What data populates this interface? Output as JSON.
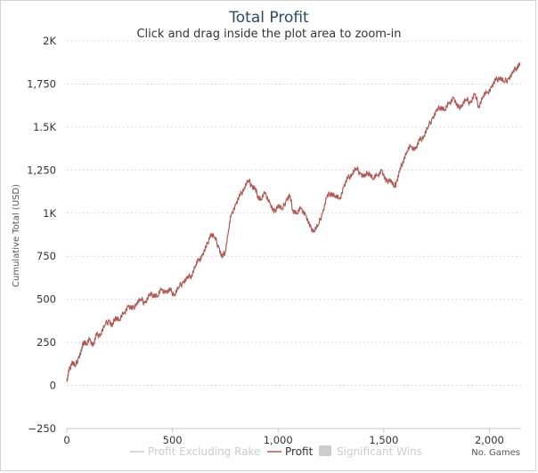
{
  "chart_data": {
    "type": "line",
    "title": "Total Profit",
    "subtitle": "Click and drag inside the plot area to zoom-in",
    "ylabel": "Cumulative Total (USD)",
    "xlabel": "No. Games",
    "xlim": [
      0,
      2150
    ],
    "ylim": [
      -250,
      2000
    ],
    "x_ticks": [
      0,
      500,
      1000,
      1500,
      2000
    ],
    "x_tick_labels": [
      "0",
      "500",
      "1,000",
      "1,500",
      "2,000"
    ],
    "y_ticks": [
      -250,
      0,
      250,
      500,
      750,
      1000,
      1250,
      1500,
      1750,
      2000
    ],
    "y_tick_labels": [
      "−250",
      "0",
      "250",
      "500",
      "750",
      "1K",
      "1,250",
      "1.5K",
      "1,750",
      "2K"
    ],
    "grid": "horizontal-dotted",
    "legend_position": "bottom-center",
    "legend": [
      {
        "name": "Profit Excluding Rake",
        "color": "#cccccc",
        "symbol": "line",
        "hidden": true
      },
      {
        "name": "Profit",
        "color": "#b05a55",
        "symbol": "line",
        "hidden": false
      },
      {
        "name": "Significant Wins",
        "color": "#cccccc",
        "symbol": "square",
        "hidden": true
      }
    ],
    "series": [
      {
        "name": "Profit",
        "color": "#b05a55",
        "x": [
          0,
          10,
          25,
          40,
          55,
          70,
          80,
          95,
          110,
          125,
          140,
          160,
          180,
          200,
          215,
          230,
          250,
          270,
          290,
          310,
          330,
          350,
          370,
          390,
          410,
          430,
          450,
          470,
          490,
          510,
          530,
          550,
          570,
          590,
          610,
          625,
          640,
          660,
          680,
          700,
          720,
          735,
          750,
          765,
          780,
          800,
          820,
          840,
          860,
          875,
          890,
          905,
          920,
          940,
          960,
          980,
          1000,
          1020,
          1040,
          1055,
          1070,
          1090,
          1110,
          1130,
          1150,
          1170,
          1190,
          1210,
          1230,
          1250,
          1270,
          1290,
          1310,
          1330,
          1350,
          1370,
          1390,
          1410,
          1430,
          1450,
          1470,
          1490,
          1510,
          1530,
          1550,
          1560,
          1575,
          1590,
          1610,
          1630,
          1650,
          1670,
          1690,
          1710,
          1730,
          1750,
          1770,
          1790,
          1810,
          1830,
          1850,
          1870,
          1890,
          1910,
          1930,
          1950,
          1970,
          1990,
          2010,
          2030,
          2050,
          2070,
          2090,
          2110,
          2130,
          2145
        ],
        "y": [
          20,
          80,
          140,
          110,
          160,
          200,
          260,
          240,
          270,
          230,
          290,
          300,
          350,
          380,
          340,
          400,
          380,
          420,
          460,
          440,
          480,
          500,
          480,
          520,
          530,
          520,
          560,
          540,
          550,
          530,
          570,
          600,
          620,
          640,
          700,
          730,
          750,
          800,
          880,
          860,
          800,
          740,
          780,
          900,
          1000,
          1050,
          1100,
          1150,
          1190,
          1160,
          1140,
          1100,
          1080,
          1120,
          1060,
          1000,
          1050,
          1020,
          1080,
          1100,
          1020,
          1000,
          1030,
          990,
          920,
          900,
          930,
          1000,
          1090,
          1120,
          1100,
          1080,
          1150,
          1200,
          1230,
          1260,
          1230,
          1210,
          1240,
          1200,
          1220,
          1250,
          1180,
          1200,
          1150,
          1180,
          1240,
          1300,
          1360,
          1390,
          1370,
          1420,
          1450,
          1500,
          1550,
          1590,
          1620,
          1600,
          1640,
          1670,
          1610,
          1630,
          1660,
          1640,
          1690,
          1620,
          1680,
          1700,
          1730,
          1770,
          1790,
          1760,
          1780,
          1810,
          1850,
          1870
        ]
      }
    ]
  }
}
